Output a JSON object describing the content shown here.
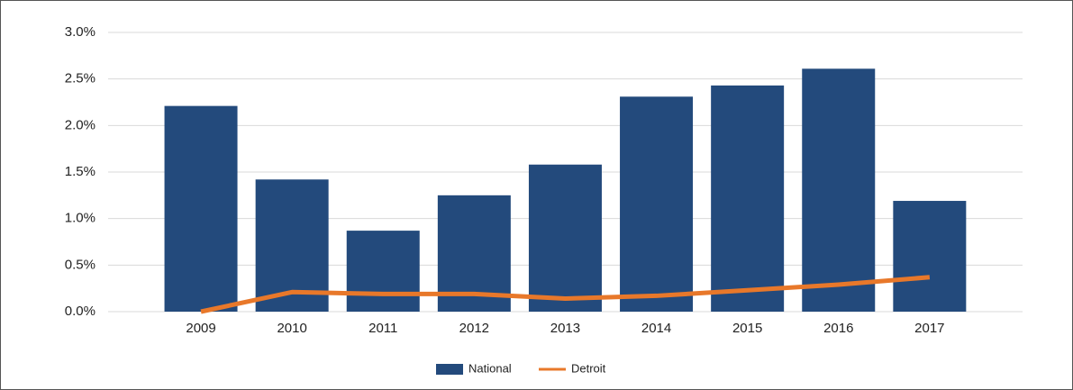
{
  "chart_data": {
    "type": "bar",
    "categories": [
      "2009",
      "2010",
      "2011",
      "2012",
      "2013",
      "2014",
      "2015",
      "2016",
      "2017"
    ],
    "series": [
      {
        "name": "National",
        "type": "bar",
        "color": "#234a7c",
        "values": [
          2.21,
          1.42,
          0.87,
          1.25,
          1.58,
          2.31,
          2.43,
          2.61,
          1.19
        ]
      },
      {
        "name": "Detroit",
        "type": "line",
        "color": "#e8782a",
        "values": [
          0,
          0.21,
          0.19,
          0.19,
          0.14,
          0.17,
          0.23,
          0.29,
          0.37
        ]
      }
    ],
    "ylim": [
      0,
      3
    ],
    "yticks": [
      {
        "value": 0,
        "label": "0.0%"
      },
      {
        "value": 0.5,
        "label": "0.5%"
      },
      {
        "value": 1,
        "label": "1.0%"
      },
      {
        "value": 1.5,
        "label": "1.5%"
      },
      {
        "value": 2,
        "label": "2.0%"
      },
      {
        "value": 2.5,
        "label": "2.5%"
      },
      {
        "value": 3,
        "label": "3.0%"
      }
    ],
    "grid": true,
    "legend": "bottom"
  }
}
